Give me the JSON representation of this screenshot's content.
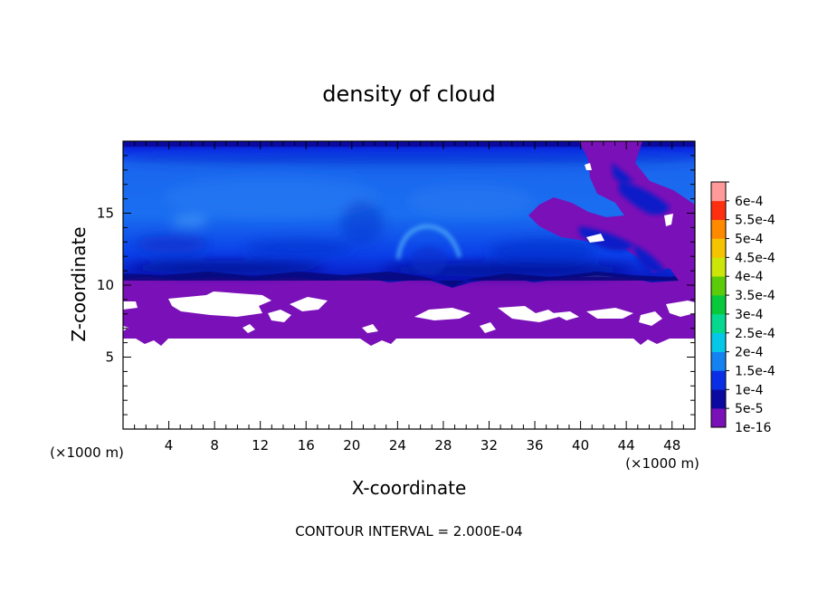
{
  "chart_data": {
    "type": "heatmap",
    "title": "density of cloud",
    "xlabel": "X-coordinate",
    "ylabel": "Z-coordinate",
    "x_unit_label": "(×1000 m)",
    "z_unit_label": "(×1000 m)",
    "xlim": [
      0,
      50
    ],
    "ylim": [
      0,
      20
    ],
    "x_ticks": [
      4,
      8,
      12,
      16,
      20,
      24,
      28,
      32,
      36,
      40,
      44,
      48
    ],
    "y_ticks": [
      5,
      10,
      15
    ],
    "footer": "CONTOUR INTERVAL = 2.000E-04",
    "colorbar": {
      "levels": [
        {
          "label": "1e-16",
          "color": "#7a10b8"
        },
        {
          "label": "5e-5",
          "color": "#0a0aa0"
        },
        {
          "label": "1e-4",
          "color": "#0a2ee6"
        },
        {
          "label": "1.5e-4",
          "color": "#1482f0"
        },
        {
          "label": "2e-4",
          "color": "#05c8e8"
        },
        {
          "label": "2.5e-4",
          "color": "#06d890"
        },
        {
          "label": "3e-4",
          "color": "#08c83c"
        },
        {
          "label": "3.5e-4",
          "color": "#5ccc0a"
        },
        {
          "label": "4e-4",
          "color": "#cce60a"
        },
        {
          "label": "4.5e-4",
          "color": "#f5c400"
        },
        {
          "label": "5e-4",
          "color": "#ff8a00"
        },
        {
          "label": "5.5e-4",
          "color": "#ff3010"
        },
        {
          "label": "6e-4",
          "color": "#ff9a9a"
        }
      ]
    },
    "regions": {
      "cloud_layer_z": [
        10.5,
        20
      ],
      "low_density_layer_z": [
        6.3,
        10.5
      ],
      "max_density_approx": 0.00015
    }
  }
}
